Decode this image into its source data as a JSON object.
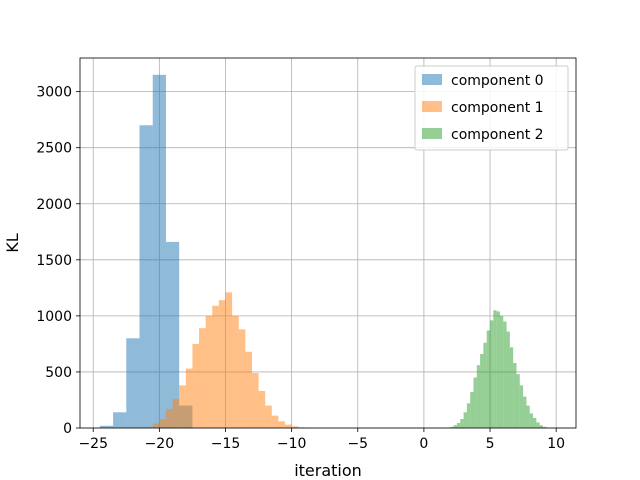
{
  "chart_data": {
    "type": "bar",
    "subtype": "histogram",
    "title": "",
    "xlabel": "iteration",
    "ylabel": "KL",
    "xlim": [
      -26,
      11.5
    ],
    "ylim": [
      0,
      3300
    ],
    "xticks": [
      -25,
      -20,
      -15,
      -10,
      -5,
      0,
      5,
      10
    ],
    "yticks": [
      0,
      500,
      1000,
      1500,
      2000,
      2500,
      3000
    ],
    "grid": true,
    "legend_position": "top-right",
    "series": [
      {
        "name": "component 0",
        "color": "#1f77b4",
        "opacity": 0.5,
        "bin_edges": [
          -24.5,
          -23.5,
          -22.5,
          -21.5,
          -20.5,
          -19.5,
          -18.5,
          -17.5
        ],
        "counts": [
          20,
          140,
          800,
          2700,
          3150,
          1660,
          200
        ]
      },
      {
        "name": "component 1",
        "color": "#ff7f0e",
        "opacity": 0.5,
        "bin_edges": [
          -21,
          -20.5,
          -20,
          -19.5,
          -19,
          -18.5,
          -18,
          -17.5,
          -17,
          -16.5,
          -16,
          -15.5,
          -15,
          -14.5,
          -14,
          -13.5,
          -13,
          -12.5,
          -12,
          -11.5,
          -11,
          -10.5,
          -10,
          -9.5,
          -9,
          -8.5
        ],
        "counts": [
          10,
          40,
          80,
          170,
          260,
          380,
          530,
          750,
          890,
          1000,
          1090,
          1140,
          1210,
          1000,
          880,
          680,
          490,
          330,
          200,
          110,
          60,
          30,
          15,
          6,
          2
        ]
      },
      {
        "name": "component 2",
        "color": "#2ca02c",
        "opacity": 0.5,
        "bin_edges": [
          2.0,
          2.25,
          2.5,
          2.75,
          3.0,
          3.25,
          3.5,
          3.75,
          4.0,
          4.25,
          4.5,
          4.75,
          5.0,
          5.25,
          5.5,
          5.75,
          6.0,
          6.25,
          6.5,
          6.75,
          7.0,
          7.25,
          7.5,
          7.75,
          8.0,
          8.25,
          8.5,
          8.75,
          9.0,
          9.25
        ],
        "counts": [
          10,
          25,
          45,
          80,
          140,
          220,
          320,
          450,
          560,
          660,
          760,
          870,
          960,
          1050,
          1040,
          1000,
          950,
          860,
          720,
          580,
          480,
          380,
          280,
          200,
          130,
          90,
          50,
          25,
          10
        ]
      }
    ]
  }
}
